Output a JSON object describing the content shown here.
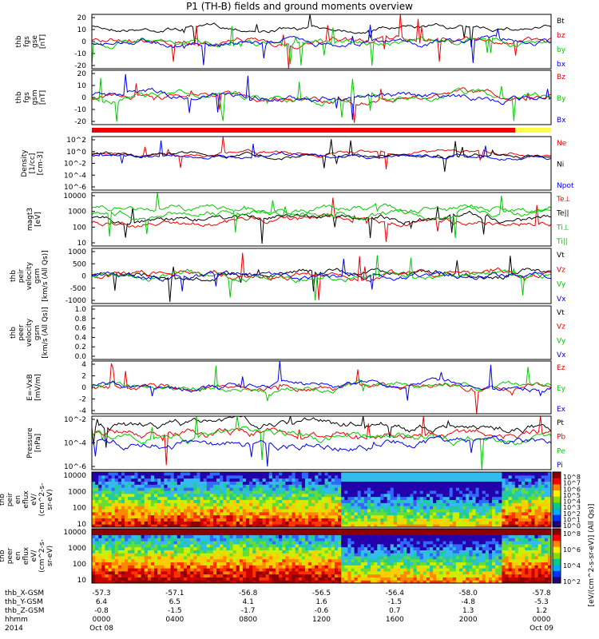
{
  "title": "P1 (TH-B) fields and ground moments overview",
  "chart_data": {
    "type": "line",
    "xaxis": {
      "rows": [
        {
          "label": "thb_X-GSM",
          "values": [
            "-57.3",
            "-57.1",
            "-56.8",
            "-56.5",
            "-56.4",
            "-58.0",
            "-57.8"
          ]
        },
        {
          "label": "thb_Y-GSM",
          "values": [
            "6.4",
            "6.5",
            "4.1",
            "1.6",
            "-1.5",
            "-4.8",
            "-5.3"
          ]
        },
        {
          "label": "thb_Z-GSM",
          "values": [
            "-0.8",
            "-1.5",
            "-1.7",
            "-0.6",
            "0.7",
            "1.3",
            "1.2"
          ]
        },
        {
          "label": "hhmm",
          "values": [
            "0000",
            "0400",
            "0800",
            "1200",
            "1600",
            "2000",
            "0000"
          ]
        },
        {
          "label": "2014",
          "values": [
            "Oct 08",
            "",
            "",
            "",
            "",
            "",
            "Oct 09"
          ]
        }
      ]
    },
    "panels": [
      {
        "id": "fgs_gse",
        "ylabel": [
          "thb",
          "fgs",
          "gse",
          "[nT]"
        ],
        "yscale": "linear",
        "ylim": [
          -20,
          20
        ],
        "ticks": [
          "20",
          "10",
          "0",
          "-10",
          "-20"
        ],
        "kind": "lines",
        "series": [
          {
            "name": "Bt",
            "color": "#000000"
          },
          {
            "name": "bz",
            "color": "#ee0000"
          },
          {
            "name": "by",
            "color": "#00cc00"
          },
          {
            "name": "bx",
            "color": "#0000ee"
          }
        ]
      },
      {
        "id": "fgs_gsm",
        "ylabel": [
          "thb",
          "fgs",
          "gsm",
          "[nT]"
        ],
        "yscale": "linear",
        "ylim": [
          -25,
          25
        ],
        "ticks": [
          "20",
          "10",
          "0",
          "-10",
          "-20"
        ],
        "kind": "lines",
        "series": [
          {
            "name": "Bz",
            "color": "#ee0000"
          },
          {
            "name": "By",
            "color": "#00cc00"
          },
          {
            "name": "Bx",
            "color": "#0000ee"
          }
        ]
      },
      {
        "id": "density",
        "ylabel": [
          "Density",
          "[1/cc]",
          "[cm-3]"
        ],
        "yscale": "log",
        "ylim": [
          -7,
          3
        ],
        "ticks": [
          "10^2",
          "10^0",
          "10^-2",
          "10^-4",
          "10^-6"
        ],
        "kind": "lines",
        "series": [
          {
            "name": "Ne",
            "color": "#ee0000"
          },
          {
            "name": "Ni",
            "color": "#000000"
          },
          {
            "name": "Npot",
            "color": "#0000ee"
          }
        ]
      },
      {
        "id": "temperature",
        "ylabel": [
          "magt3",
          "[eV]"
        ],
        "yscale": "log",
        "ylim": [
          0.5,
          4.1
        ],
        "ticks": [
          "10000",
          "1000",
          "100",
          "10"
        ],
        "kind": "lines",
        "series": [
          {
            "name": "Te⊥",
            "color": "#ee0000"
          },
          {
            "name": "Te||",
            "color": "#000000"
          },
          {
            "name": "Ti⊥",
            "color": "#00cc00"
          },
          {
            "name": "Ti||",
            "color": "#00cc00"
          }
        ]
      },
      {
        "id": "peir_vel",
        "ylabel": [
          "thb",
          "peir",
          "velocity",
          "gsm",
          "[km/s (All Qs)]"
        ],
        "yscale": "linear",
        "ylim": [
          -1000,
          1000
        ],
        "ticks": [
          "1000",
          "500",
          "0",
          "-500",
          "-1000"
        ],
        "kind": "lines",
        "series": [
          {
            "name": "Vt",
            "color": "#000000"
          },
          {
            "name": "Vz",
            "color": "#ee0000"
          },
          {
            "name": "Vy",
            "color": "#00cc00"
          },
          {
            "name": "Vx",
            "color": "#0000ee"
          }
        ]
      },
      {
        "id": "peer_vel",
        "ylabel": [
          "thb",
          "peer",
          "velocity",
          "gsm",
          "[km/s (All Qs)]"
        ],
        "yscale": "linear",
        "ylim": [
          0,
          1
        ],
        "ticks": [
          "1.0",
          "0.8",
          "0.6",
          "0.4",
          "0.2",
          "0.0"
        ],
        "kind": "empty",
        "series": [
          {
            "name": "Vt",
            "color": "#000000"
          },
          {
            "name": "Vz",
            "color": "#ee0000"
          },
          {
            "name": "Vy",
            "color": "#00cc00"
          },
          {
            "name": "Vx",
            "color": "#0000ee"
          }
        ]
      },
      {
        "id": "efield",
        "ylabel": [
          "E=-VxB",
          "[mV/m]"
        ],
        "yscale": "linear",
        "ylim": [
          -6,
          6
        ],
        "ticks": [
          "4",
          "2",
          "0",
          "-2",
          "-4"
        ],
        "kind": "lines",
        "series": [
          {
            "name": "Ez",
            "color": "#ee0000"
          },
          {
            "name": "Ey",
            "color": "#00cc00"
          },
          {
            "name": "Ex",
            "color": "#0000ee"
          }
        ]
      },
      {
        "id": "pressure",
        "ylabel": [
          "Pressure",
          "[nPa]"
        ],
        "yscale": "log",
        "ylim": [
          -7,
          -0.5
        ],
        "ticks": [
          "10^-2",
          "10^-4",
          "10^-6"
        ],
        "kind": "lines",
        "series": [
          {
            "name": "Pt",
            "color": "#000000"
          },
          {
            "name": "Pb",
            "color": "#ee0000"
          },
          {
            "name": "Pe",
            "color": "#00cc00"
          },
          {
            "name": "Pi",
            "color": "#0000ee"
          }
        ]
      },
      {
        "id": "peir_spec",
        "ylabel": [
          "thb",
          "peir",
          "en",
          "eflux",
          "eV/",
          "(cm^2-s-",
          "sr-eV)"
        ],
        "yscale": "log",
        "ylim": [
          0.7,
          4.4
        ],
        "ticks": [
          "10000",
          "1000",
          "100",
          "10"
        ],
        "kind": "spectrogram",
        "colorbar": [
          "10^8",
          "10^7",
          "10^6",
          "10^5",
          "10^4",
          "10^3",
          "10^2",
          "10^1",
          "10^0"
        ]
      },
      {
        "id": "peer_spec",
        "ylabel": [
          "thb",
          "peer",
          "en",
          "eflux",
          "eV/",
          "(cm^2-s-",
          "sr-eV)"
        ],
        "yscale": "log",
        "ylim": [
          0.7,
          4.4
        ],
        "ticks": [
          "10000",
          "1000",
          "100",
          "10"
        ],
        "kind": "spectrogram",
        "colorbar": [
          "10^8",
          "10^6",
          "10^4",
          "10^2"
        ]
      }
    ],
    "colorbar_label": "[eV/(cm^2-s-sr-eV)] (All Qs)]"
  }
}
